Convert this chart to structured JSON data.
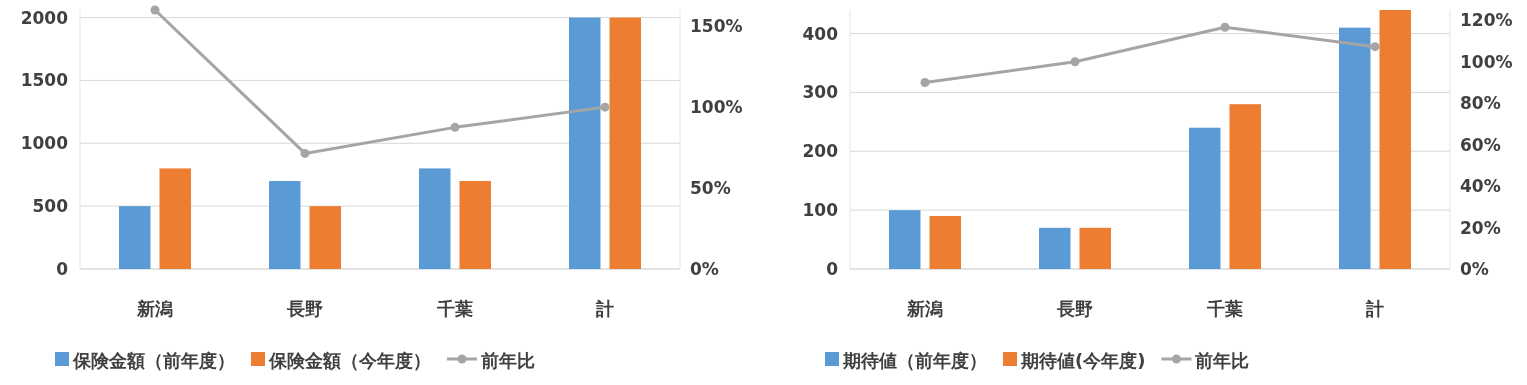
{
  "chart_data": [
    {
      "type": "bar",
      "categories": [
        "新潟",
        "長野",
        "千葉",
        "計"
      ],
      "series": [
        {
          "name": "保険金額（前年度）",
          "color": "#5b9bd5",
          "values": [
            500,
            700,
            800,
            2000
          ]
        },
        {
          "name": "保険金額（今年度）",
          "color": "#ed7d31",
          "values": [
            800,
            500,
            700,
            2000
          ]
        },
        {
          "name": "前年比",
          "type": "line",
          "axis": "y2",
          "color": "#a5a5a5",
          "values": [
            160,
            71.4,
            87.5,
            100
          ]
        }
      ],
      "ylim": [
        0,
        2060
      ],
      "yticks": [
        0,
        500,
        1000,
        1500,
        2000
      ],
      "y2lim": [
        0,
        160
      ],
      "y2ticks": [
        {
          "value": 0,
          "label": "0%"
        },
        {
          "value": 50,
          "label": "50%"
        },
        {
          "value": 100,
          "label": "100%"
        },
        {
          "value": 150,
          "label": "150%"
        }
      ],
      "grid": "y",
      "legend": "bottom",
      "marker": "circle"
    },
    {
      "type": "bar",
      "categories": [
        "新潟",
        "長野",
        "千葉",
        "計"
      ],
      "series": [
        {
          "name": "期待値（前年度）",
          "color": "#5b9bd5",
          "values": [
            100,
            70,
            240,
            410
          ]
        },
        {
          "name": "期待値(今年度)",
          "color": "#ed7d31",
          "values": [
            90,
            70,
            280,
            440
          ]
        },
        {
          "name": "前年比",
          "type": "line",
          "axis": "y2",
          "color": "#a5a5a5",
          "values": [
            90,
            100,
            116.7,
            107.3
          ]
        }
      ],
      "ylim": [
        0,
        440
      ],
      "yticks": [
        0,
        100,
        200,
        300,
        400
      ],
      "y2lim": [
        0,
        125
      ],
      "y2ticks": [
        {
          "value": 0,
          "label": "0%"
        },
        {
          "value": 20,
          "label": "20%"
        },
        {
          "value": 40,
          "label": "40%"
        },
        {
          "value": 60,
          "label": "60%"
        },
        {
          "value": 80,
          "label": "80%"
        },
        {
          "value": 100,
          "label": "100%"
        },
        {
          "value": 120,
          "label": "120%"
        }
      ],
      "grid": "y",
      "legend": "bottom",
      "marker": "circle"
    }
  ]
}
